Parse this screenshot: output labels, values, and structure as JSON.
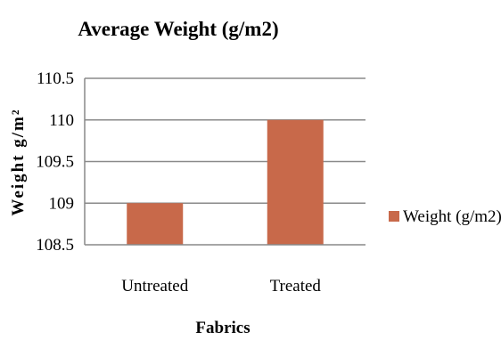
{
  "chart_data": {
    "type": "bar",
    "title": "Average Weight (g/m2)",
    "xlabel": "Fabrics",
    "ylabel": "Weight g/m²",
    "categories": [
      "Untreated",
      "Treated"
    ],
    "series": [
      {
        "name": "Weight (g/m2)",
        "values": [
          109,
          110
        ],
        "color": "#c8694a"
      }
    ],
    "ylim": [
      108.5,
      110.5
    ],
    "yticks": [
      "108.5",
      "109",
      "109.5",
      "110",
      "110.5"
    ],
    "grid": true,
    "legend": "right"
  }
}
